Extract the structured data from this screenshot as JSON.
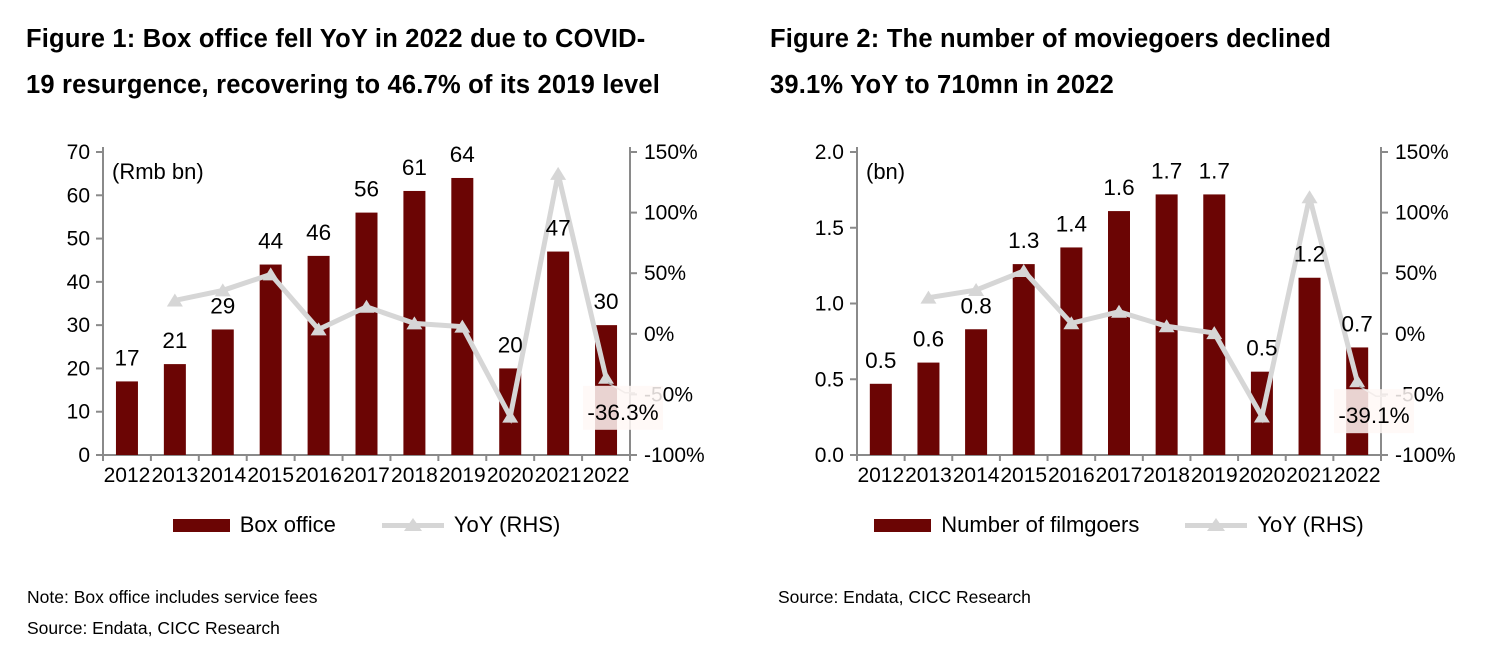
{
  "page": {
    "background": "#ffffff",
    "text_color": "#000000"
  },
  "figures": [
    {
      "title_line1": "Figure 1: Box office fell YoY in 2022 due to COVID-",
      "title_line2": "19 resurgence, recovering to 46.7% of its 2019 level",
      "legend": [
        {
          "label": "Box office",
          "type": "bar",
          "color": "#6b0504"
        },
        {
          "label": "YoY (RHS)",
          "type": "line",
          "color": "#d6d6d6"
        }
      ],
      "note": "Note: Box office includes service fees",
      "source": "Source: Endata, CICC Research"
    },
    {
      "title_line1": "Figure 2: The number of moviegoers declined",
      "title_line2": "39.1% YoY to 710mn in 2022",
      "legend": [
        {
          "label": "Number of filmgoers",
          "type": "bar",
          "color": "#6b0504"
        },
        {
          "label": "YoY (RHS)",
          "type": "line",
          "color": "#d6d6d6"
        }
      ],
      "note": "",
      "source": "Source: Endata, CICC Research"
    }
  ],
  "chart_data": [
    {
      "type": "bar",
      "title": "Box office fell YoY in 2022 due to COVID-19 resurgence, recovering to 46.7% of its 2019 level",
      "categories": [
        "2012",
        "2013",
        "2014",
        "2015",
        "2016",
        "2017",
        "2018",
        "2019",
        "2020",
        "2021",
        "2022"
      ],
      "series": [
        {
          "name": "Box office",
          "type": "bar",
          "axis": "left",
          "color": "#6b0504",
          "values": [
            17,
            21,
            29,
            44,
            46,
            56,
            61,
            64,
            20,
            47,
            30
          ],
          "labels": [
            "17",
            "21",
            "29",
            "44",
            "46",
            "56",
            "61",
            "64",
            "20",
            "47",
            "30"
          ]
        },
        {
          "name": "YoY (RHS)",
          "type": "line",
          "axis": "right",
          "color": "#d6d6d6",
          "values": [
            null,
            27.5,
            35.8,
            49.0,
            3.6,
            22.3,
            8.6,
            5.9,
            -68.3,
            131.9,
            -36.3
          ]
        }
      ],
      "left_axis": {
        "title": "(Rmb bn)",
        "min": 0,
        "max": 70,
        "tick_values": [
          0,
          10,
          20,
          30,
          40,
          50,
          60,
          70
        ],
        "tick_labels": [
          "0",
          "10",
          "20",
          "30",
          "40",
          "50",
          "60",
          "70"
        ]
      },
      "right_axis": {
        "min": -100,
        "max": 150,
        "tick_values": [
          150,
          100,
          50,
          0,
          -50,
          -100
        ],
        "tick_labels": [
          "150%",
          "100%",
          "50%",
          "0%",
          "-50%",
          "-100%"
        ]
      },
      "annotation": {
        "series": "YoY (RHS)",
        "category": "2022",
        "value": -36.3,
        "text": "-36.3%"
      },
      "grid": false,
      "legend_position": "bottom"
    },
    {
      "type": "bar",
      "title": "The number of moviegoers declined 39.1% YoY to 710mn in 2022",
      "categories": [
        "2012",
        "2013",
        "2014",
        "2015",
        "2016",
        "2017",
        "2018",
        "2019",
        "2020",
        "2021",
        "2022"
      ],
      "series": [
        {
          "name": "Number of filmgoers",
          "type": "bar",
          "axis": "left",
          "color": "#6b0504",
          "values": [
            0.47,
            0.61,
            0.83,
            1.26,
            1.37,
            1.61,
            1.72,
            1.72,
            0.55,
            1.17,
            0.71
          ],
          "labels": [
            "0.5",
            "0.6",
            "0.8",
            "1.3",
            "1.4",
            "1.6",
            "1.7",
            "1.7",
            "0.5",
            "1.2",
            "0.7"
          ]
        },
        {
          "name": "YoY (RHS)",
          "type": "line",
          "axis": "right",
          "color": "#d6d6d6",
          "values": [
            null,
            29.8,
            36.1,
            51.8,
            8.7,
            18.2,
            6.2,
            0.6,
            -68.2,
            112.7,
            -39.1
          ]
        }
      ],
      "left_axis": {
        "title": "(bn)",
        "min": 0,
        "max": 2.0,
        "tick_values": [
          0,
          0.5,
          1.0,
          1.5,
          2.0
        ],
        "tick_labels": [
          "0.0",
          "0.5",
          "1.0",
          "1.5",
          "2.0"
        ]
      },
      "right_axis": {
        "min": -100,
        "max": 150,
        "tick_values": [
          150,
          100,
          50,
          0,
          -50,
          -100
        ],
        "tick_labels": [
          "150%",
          "100%",
          "50%",
          "0%",
          "-50%",
          "-100%"
        ]
      },
      "annotation": {
        "series": "YoY (RHS)",
        "category": "2022",
        "value": -39.1,
        "text": "-39.1%"
      },
      "grid": false,
      "legend_position": "bottom"
    }
  ]
}
